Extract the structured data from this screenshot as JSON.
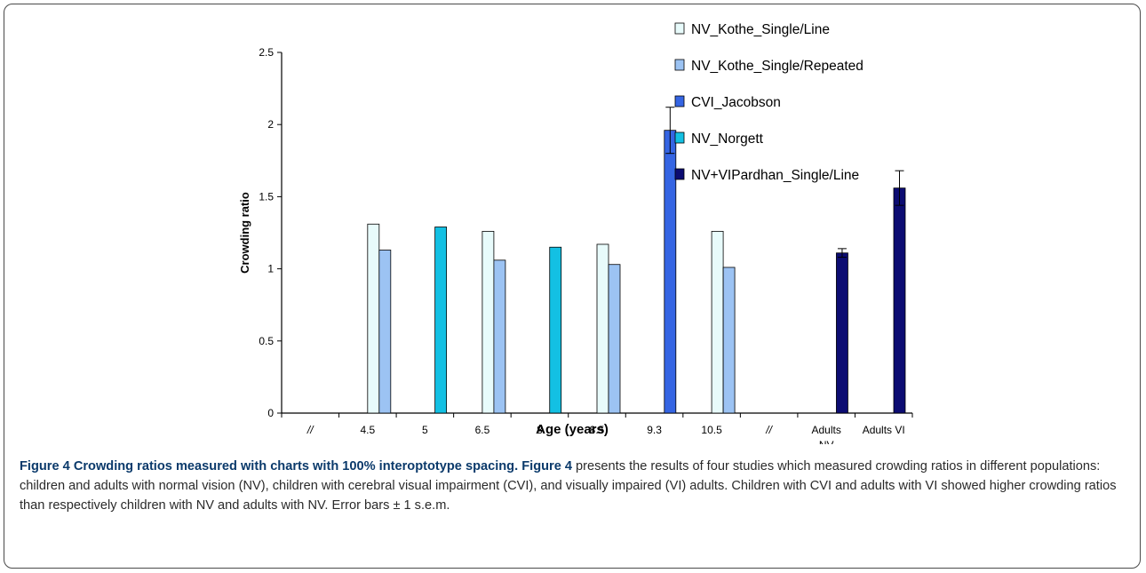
{
  "chart_data": {
    "type": "bar",
    "ylabel": "Crowding ratio",
    "xlabel": "Age (years)",
    "ylim": [
      0,
      2.5
    ],
    "yticks": [
      0,
      0.5,
      1,
      1.5,
      2,
      2.5
    ],
    "ytick_labels": [
      "0",
      "0.5",
      "1",
      "1.5",
      "2",
      "2.5"
    ],
    "categories": [
      "//",
      "4.5",
      "5",
      "6.5",
      "8",
      "8.5",
      "9.3",
      "10.5",
      "//",
      "Adults NV",
      "Adults VI"
    ],
    "series": [
      {
        "name": "NV_Kothe_Single/Line",
        "color": "#e8fbfb",
        "values": [
          null,
          1.31,
          null,
          1.26,
          null,
          1.17,
          null,
          1.26,
          null,
          null,
          null
        ]
      },
      {
        "name": "NV_Kothe_Single/Repeated",
        "color": "#9cc3f3",
        "values": [
          null,
          1.13,
          null,
          1.06,
          null,
          1.03,
          null,
          1.01,
          null,
          null,
          null
        ]
      },
      {
        "name": "CVI_Jacobson",
        "color": "#3565e3",
        "values": [
          null,
          null,
          null,
          null,
          null,
          null,
          1.96,
          null,
          null,
          null,
          null
        ],
        "errors": [
          null,
          null,
          null,
          null,
          null,
          null,
          0.16,
          null,
          null,
          null,
          null
        ]
      },
      {
        "name": "NV_Norgett",
        "color": "#13c0e3",
        "values": [
          null,
          null,
          1.29,
          null,
          1.15,
          null,
          null,
          null,
          null,
          null,
          null
        ]
      },
      {
        "name": "NV+VIPardhan_Single/Line",
        "color": "#0c0c72",
        "values": [
          null,
          null,
          null,
          null,
          null,
          null,
          null,
          null,
          null,
          1.11,
          1.56
        ],
        "errors": [
          null,
          null,
          null,
          null,
          null,
          null,
          null,
          null,
          null,
          0.03,
          0.12
        ]
      }
    ],
    "legend_position": "top-right",
    "grid": false
  },
  "caption": {
    "title": "Figure 4 Crowding ratios measured with charts with 100% interoptotype spacing.",
    "ref": "Figure 4",
    "body": " presents the results of four studies which measured crowding ratios in different populations: children and adults with normal vision (NV), children with cerebral visual impairment (CVI), and visually impaired (VI) adults. Children with CVI and adults with VI showed higher crowding ratios than respectively children with NV and adults with NV. Error bars ± 1 s.e.m."
  }
}
